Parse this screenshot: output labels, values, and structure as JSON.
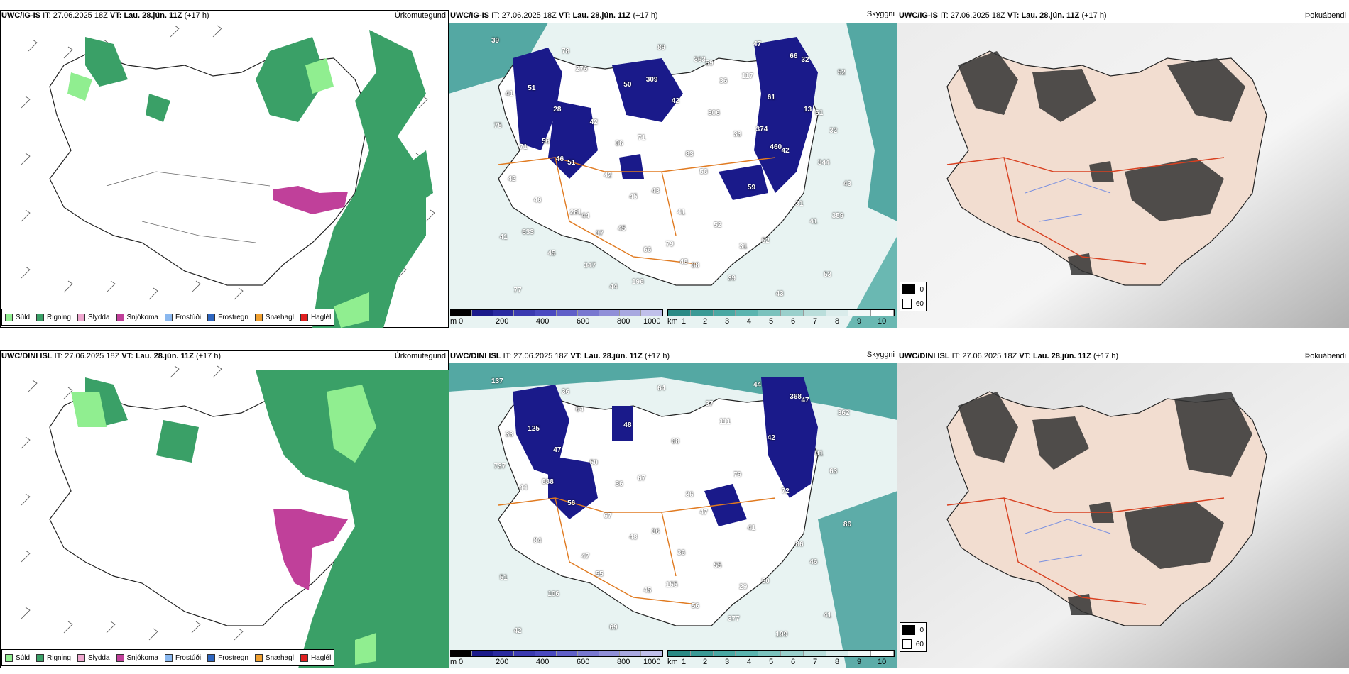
{
  "colors": {
    "drizzle": "#90ee90",
    "rain": "#3aa067",
    "sleet": "#f0a8d0",
    "snow": "#c0409a",
    "freezing_drizzle": "#8ab8ef",
    "freezing_rain": "#2e66c0",
    "snow_pellets": "#f0a030",
    "hail": "#e02020",
    "cloud_low": "#1a1a8a",
    "cloud_mid": "#9aa0e0",
    "cloud_ceiling": "#3a9a95",
    "road": "#e07a20",
    "dew_land": "#f2ddd0"
  },
  "rows": [
    {
      "model": "UWC/IG-IS",
      "it_label": "IT:",
      "it_value": "27.06.2025 18Z",
      "vt_label": "VT:",
      "vt_value": "Lau. 28.jún. 11Z",
      "lead": "(+17 h)",
      "precip_title": "Úrkomutegund",
      "cloud_title": "Skyggni",
      "dew_title": "Þokuábendi",
      "cloud_labels": [
        "39",
        "28",
        "36",
        "41",
        "31",
        "32",
        "41",
        "51",
        "45",
        "38",
        "47",
        "61",
        "71",
        "44",
        "66",
        "59",
        "61",
        "32",
        "46",
        "37",
        "89",
        "36",
        "42",
        "43",
        "45",
        "44",
        "42",
        "33",
        "31",
        "41",
        "78",
        "50",
        "83",
        "59",
        "41",
        "77",
        "276",
        "71",
        "58",
        "52",
        "53",
        "51",
        "42",
        "43",
        "52",
        "43",
        "52",
        "56",
        "42",
        "79",
        "39",
        "66",
        "75",
        "46",
        "45",
        "48",
        "117",
        "13",
        "42",
        "281",
        "196",
        "363",
        "374",
        "344",
        "633",
        "347",
        "309",
        "306",
        "460",
        "359"
      ]
    },
    {
      "model": "UWC/DINI ISL",
      "it_label": "IT:",
      "it_value": "27.06.2025 18Z",
      "vt_label": "VT:",
      "vt_value": "Lau. 28.jún. 11Z",
      "lead": "(+17 h)",
      "precip_title": "Úrkomutegund",
      "cloud_title": "Skyggni",
      "dew_title": "Þokuábendi",
      "cloud_labels": [
        "137",
        "47",
        "36",
        "36",
        "29",
        "47",
        "33",
        "56",
        "48",
        "56",
        "44",
        "31",
        "44",
        "47",
        "45",
        "37",
        "42",
        "63",
        "84",
        "55",
        "64",
        "111",
        "72",
        "86",
        "106",
        "69",
        "68",
        "79",
        "86",
        "51",
        "36",
        "48",
        "36",
        "41",
        "46",
        "42",
        "64",
        "67",
        "47",
        "50",
        "41",
        "125",
        "50",
        "36",
        "55",
        "199",
        "362",
        "888",
        "67",
        "155",
        "377",
        "368",
        "737"
      ]
    }
  ],
  "precip_legend": [
    "Súld",
    "Rigning",
    "Slydda",
    "Snjókoma",
    "Frostúði",
    "Frostregn",
    "Snæhagl",
    "Haglél"
  ],
  "cloud_legend": {
    "base_unit": "m",
    "base_ticks": [
      "0",
      "200",
      "400",
      "600",
      "800",
      "1000"
    ],
    "vis_unit": "km",
    "vis_ticks": [
      "1",
      "2",
      "3",
      "4",
      "5",
      "6",
      "7",
      "8",
      "9",
      "10"
    ]
  },
  "dew_legend": [
    "0",
    "60"
  ]
}
